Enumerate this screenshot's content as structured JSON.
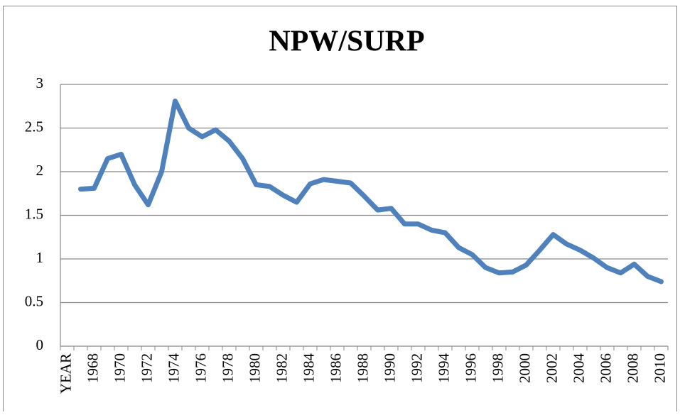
{
  "chart_data": {
    "type": "line",
    "title": "NPW/SURP",
    "categories": [
      "YEAR",
      null,
      "1968",
      null,
      "1970",
      null,
      "1972",
      null,
      "1974",
      null,
      "1976",
      null,
      "1978",
      null,
      "1980",
      null,
      "1982",
      null,
      "1984",
      null,
      "1986",
      null,
      "1988",
      null,
      "1990",
      null,
      "1992",
      null,
      "1994",
      null,
      "1996",
      null,
      "1998",
      null,
      "2000",
      null,
      "2002",
      null,
      "2004",
      null,
      "2006",
      null,
      "2008",
      null,
      "2010"
    ],
    "series": [
      {
        "name": "NPW/SURP",
        "color": "#4f81bd",
        "values": [
          null,
          1.8,
          1.81,
          2.15,
          2.2,
          1.85,
          1.62,
          2.0,
          2.81,
          2.5,
          2.4,
          2.48,
          2.35,
          2.15,
          1.85,
          1.83,
          1.73,
          1.65,
          1.86,
          1.91,
          1.89,
          1.87,
          1.72,
          1.56,
          1.58,
          1.4,
          1.4,
          1.33,
          1.3,
          1.13,
          1.05,
          0.9,
          0.84,
          0.85,
          0.93,
          1.1,
          1.28,
          1.17,
          1.1,
          1.01,
          0.9,
          0.84,
          0.94,
          0.8,
          0.74
        ]
      }
    ],
    "ylim": [
      0,
      3
    ],
    "yticks": [
      0,
      0.5,
      1,
      1.5,
      2,
      2.5,
      3
    ],
    "grid": true
  }
}
